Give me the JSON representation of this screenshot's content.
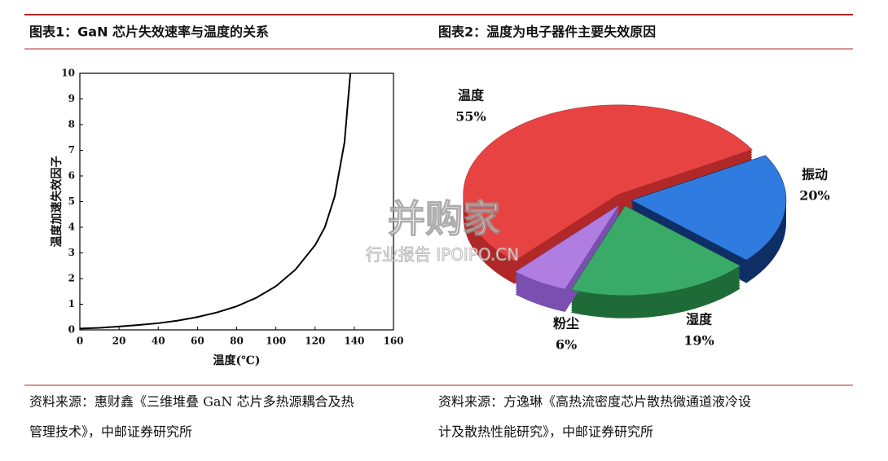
{
  "watermark": {
    "logo": "并购家",
    "text": "行业报告 IPOIPO.CN"
  },
  "chart_data": [
    {
      "type": "line",
      "title": "图表1：GaN 芯片失效速率与温度的关系",
      "source": [
        "资料来源：惠财鑫《三维堆叠 GaN 芯片多热源耦合及热",
        "管理技术》，中邮证券研究所"
      ],
      "x_label": "温度(℃)",
      "y_label": "温度加速失效因子",
      "x": [
        0,
        10,
        20,
        30,
        40,
        50,
        60,
        70,
        80,
        90,
        100,
        110,
        120,
        125,
        130,
        135,
        138
      ],
      "series": [
        {
          "color": "#000000",
          "values": [
            0.05,
            0.08,
            0.13,
            0.19,
            0.26,
            0.36,
            0.5,
            0.68,
            0.92,
            1.25,
            1.7,
            2.35,
            3.3,
            4.0,
            5.2,
            7.3,
            10
          ]
        }
      ],
      "xlim": [
        0,
        160
      ],
      "xticks": [
        0,
        20,
        40,
        60,
        80,
        100,
        120,
        140,
        160
      ],
      "ylim": [
        0,
        10
      ],
      "yticks": [
        0,
        1,
        2,
        3,
        4,
        5,
        6,
        7,
        8,
        9,
        10
      ]
    },
    {
      "type": "pie",
      "title": "图表2：温度为电子器件主要失效原因",
      "source": [
        "资料来源：方逸琳《高热流密度芯片散热微通道液冷设",
        "计及散热性能研究》，中邮证券研究所"
      ],
      "categories": [
        "温度",
        "振动",
        "湿度",
        "粉尘"
      ],
      "values": [
        55,
        20,
        19,
        6
      ],
      "value_labels": [
        "55%",
        "20%",
        "19%",
        "6%"
      ],
      "colors": [
        "#e84343",
        "#2f7be0",
        "#3aaa68",
        "#b07de0"
      ],
      "side_colors": [
        "#b02828",
        "#0f2e66",
        "#1f6b38",
        "#7a4fb0"
      ]
    }
  ]
}
